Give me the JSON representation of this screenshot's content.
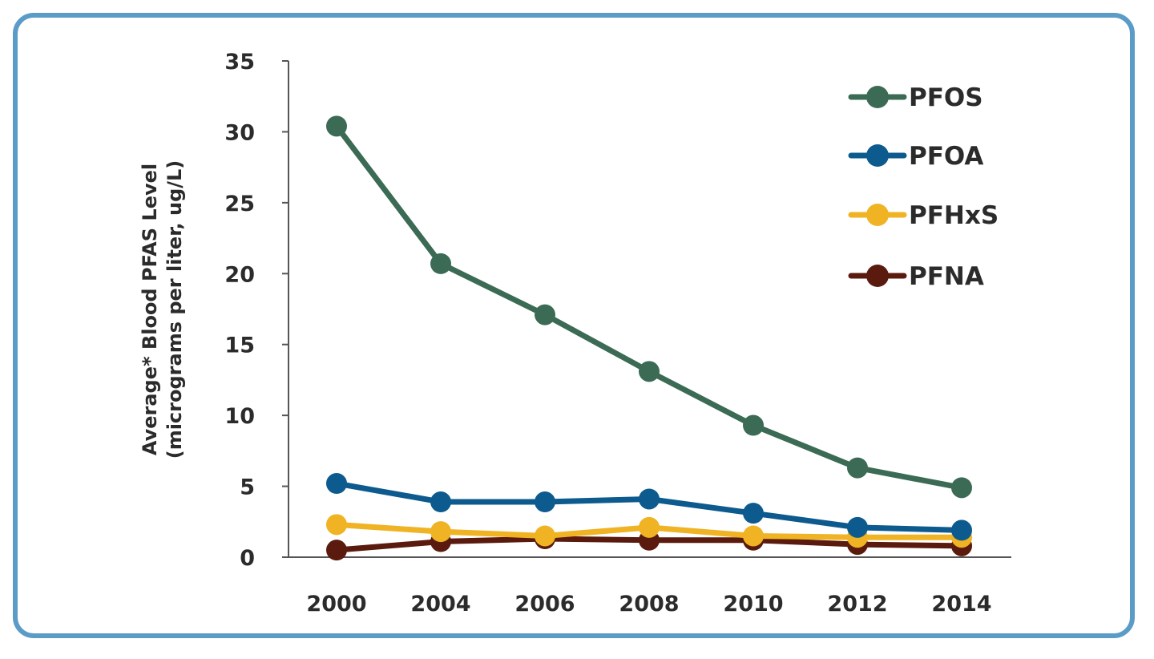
{
  "chart_data": {
    "type": "line",
    "categories": [
      "2000",
      "2004",
      "2006",
      "2008",
      "2010",
      "2012",
      "2014"
    ],
    "ylabel_line1": "Average* Blood PFAS Level",
    "ylabel_line2": "(micrograms per liter, ug/L)",
    "ylim": [
      0,
      35
    ],
    "yticks": [
      0,
      5,
      10,
      15,
      20,
      25,
      30,
      35
    ],
    "legend_position": "top-right",
    "series": [
      {
        "name": "PFOS",
        "color": "#3c6b55",
        "values": [
          30.4,
          20.7,
          17.1,
          13.1,
          9.3,
          6.3,
          4.9
        ]
      },
      {
        "name": "PFOA",
        "color": "#0d5a8e",
        "values": [
          5.2,
          3.9,
          3.9,
          4.1,
          3.1,
          2.1,
          1.9
        ]
      },
      {
        "name": "PFHxS",
        "color": "#f0b323",
        "values": [
          2.3,
          1.8,
          1.5,
          2.1,
          1.5,
          1.4,
          1.4
        ]
      },
      {
        "name": "PFNA",
        "color": "#5a1a0e",
        "values": [
          0.5,
          1.1,
          1.3,
          1.2,
          1.2,
          0.9,
          0.8
        ]
      }
    ]
  }
}
